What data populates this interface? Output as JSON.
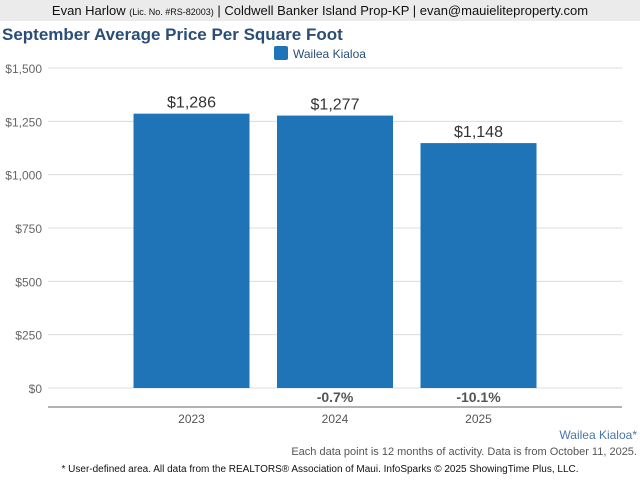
{
  "header": {
    "name": "Evan Harlow",
    "license": "(Lic. No. #RS-82003)",
    "company": " | Coldwell Banker Island Prop-KP | evan@mauieliteproperty.com"
  },
  "title": "September Average Price Per Square Foot",
  "chart_data": {
    "type": "bar",
    "title": "September Average Price Per Square Foot",
    "legend": [
      {
        "name": "Wailea Kialoa",
        "color": "#1f73b7"
      }
    ],
    "legend_position": "top-center",
    "categories": [
      "2023",
      "2024",
      "2025"
    ],
    "values": [
      1286,
      1277,
      1148
    ],
    "value_labels": [
      "$1,286",
      "$1,277",
      "$1,148"
    ],
    "change_labels": [
      "",
      "-0.7%",
      "-10.1%"
    ],
    "ylim": [
      0,
      1500
    ],
    "yticks": [
      0,
      250,
      500,
      750,
      1000,
      1250,
      1500
    ],
    "ytick_labels": [
      "$0",
      "$250",
      "$500",
      "$750",
      "$1,000",
      "$1,250",
      "$1,500"
    ],
    "grid": true
  },
  "footer": {
    "area": "Wailea Kialoa*",
    "note": "Each data point is 12 months of activity. Data is from October 11, 2025.",
    "disclaimer": "* User-defined area. All data from the REALTORS® Association of Maui. InfoSparks © 2025 ShowingTime Plus, LLC."
  }
}
